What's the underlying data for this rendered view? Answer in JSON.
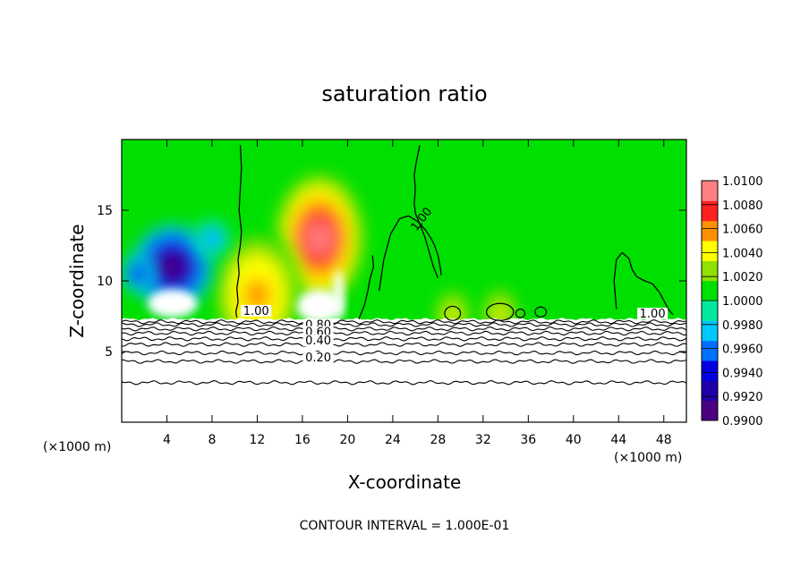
{
  "chart_data": {
    "type": "heatmap",
    "title": "saturation ratio",
    "xlabel": "X-coordinate",
    "ylabel": "Z-coordinate",
    "x_unit": "(×1000 m)",
    "x_unit_right": "(×1000 m)",
    "xlim": [
      0,
      50
    ],
    "ylim": [
      0,
      20
    ],
    "x_ticks": [
      4,
      8,
      12,
      16,
      20,
      24,
      28,
      32,
      36,
      40,
      44,
      48
    ],
    "x_tick_labels": [
      "4",
      "8",
      "12",
      "16",
      "20",
      "24",
      "28",
      "32",
      "36",
      "40",
      "44",
      "48"
    ],
    "y_ticks": [
      5,
      10,
      15
    ],
    "y_tick_labels": [
      "5",
      "10",
      "15"
    ],
    "colorbar": {
      "min": 0.99,
      "max": 1.01,
      "labels": [
        "1.0100",
        "1.0080",
        "1.0060",
        "1.0040",
        "1.0020",
        "1.0000",
        "0.9980",
        "0.9960",
        "0.9940",
        "0.9920",
        "0.9900"
      ],
      "colors": [
        "#4b0082",
        "#1f00a8",
        "#0000e0",
        "#0070ff",
        "#00c8ff",
        "#00e8a0",
        "#00e000",
        "#90e000",
        "#ffff00",
        "#ff9000",
        "#ff2020",
        "#ff8080"
      ]
    },
    "background_ratio": 1.0,
    "features": [
      {
        "kind": "moist",
        "x": 17.5,
        "z": 13.0,
        "peak": 1.0085
      },
      {
        "kind": "moist",
        "x": 12.0,
        "z": 9.0,
        "peak": 1.006
      },
      {
        "kind": "dry",
        "x": 4.5,
        "z": 11.0,
        "peak": 0.9915
      },
      {
        "kind": "dry",
        "x": 1.5,
        "z": 10.5,
        "peak": 0.9935
      },
      {
        "kind": "dry",
        "x": 8.0,
        "z": 13.0,
        "peak": 0.9965
      },
      {
        "kind": "moist",
        "x": 29.3,
        "z": 7.6,
        "peak": 1.004
      },
      {
        "kind": "moist",
        "x": 33.5,
        "z": 7.7,
        "peak": 1.004
      }
    ],
    "contour_interval_label": "CONTOUR INTERVAL = 1.000E-01",
    "contour_labels": [
      "1.00",
      "1.00",
      "1.00",
      "0.80",
      "0.60",
      "0.40",
      "0.20"
    ],
    "unsaturated_layer_top_z": 7.3,
    "lower_contours": [
      {
        "z": 7.1
      },
      {
        "z": 6.9
      },
      {
        "z": 6.6,
        "label": "0.80"
      },
      {
        "z": 6.3,
        "label": "0.60"
      },
      {
        "z": 5.9
      },
      {
        "z": 5.5,
        "label": "0.40"
      },
      {
        "z": 4.9
      },
      {
        "z": 4.3,
        "label": "0.20"
      },
      {
        "z": 2.8
      }
    ],
    "upper_contours": [
      {
        "label": "1.00",
        "x": [
          10.5,
          10.6,
          10.5,
          10.4,
          10.6,
          10.5,
          10.3,
          10.4,
          10.2,
          10.3,
          10.1,
          10.2
        ],
        "z": [
          19.6,
          18,
          16.5,
          15,
          13.5,
          12.5,
          11.5,
          10.5,
          9.5,
          8.5,
          7.8,
          7.4
        ]
      },
      {
        "label": "1.00",
        "x": [
          26.4,
          26.1,
          25.9,
          26.0,
          25.9,
          26.0,
          26.4,
          26.8,
          27.1,
          27.6,
          28.0
        ],
        "z": [
          19.6,
          18.5,
          17.5,
          16.5,
          15.5,
          14.8,
          14.0,
          13.2,
          12.4,
          11.0,
          10.2
        ]
      },
      {
        "label": "1.00",
        "x": [
          22.8,
          23.2,
          23.8,
          24.6,
          25.4,
          26.2,
          26.9,
          27.4,
          27.7,
          28.0,
          28.2,
          28.3
        ],
        "z": [
          9.3,
          11.5,
          13.3,
          14.4,
          14.6,
          14.2,
          13.6,
          13.0,
          12.5,
          11.8,
          11.0,
          10.4
        ]
      },
      {
        "label": "",
        "x": [
          21.0,
          21.5,
          21.8,
          22.0,
          22.3,
          22.2
        ],
        "z": [
          7.3,
          8.3,
          9.3,
          10.2,
          11.0,
          11.8
        ]
      },
      {
        "label": "1.00",
        "x": [
          43.8,
          43.6,
          43.8,
          44.3,
          44.9,
          45.2,
          45.6,
          46.3,
          47.0,
          47.6,
          48.0,
          48.4,
          48.8
        ],
        "z": [
          8.0,
          10.0,
          11.5,
          12.0,
          11.6,
          10.8,
          10.3,
          10.0,
          9.8,
          9.2,
          8.6,
          8.0,
          7.6
        ]
      }
    ]
  }
}
